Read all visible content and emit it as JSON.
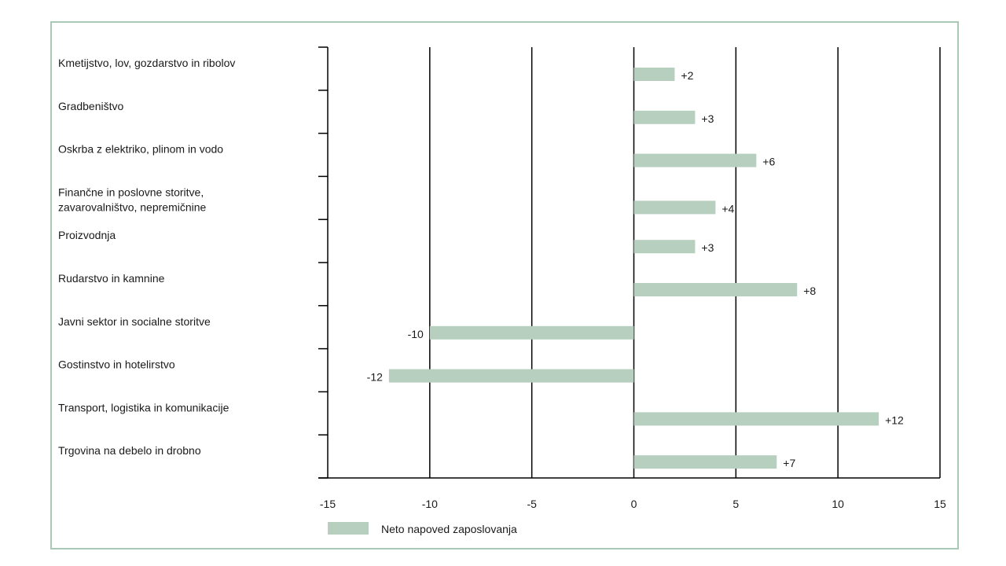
{
  "chart_data": {
    "type": "bar",
    "orientation": "horizontal",
    "categories": [
      [
        "Kmetijstvo, lov, gozdarstvo in ribolov"
      ],
      [
        "Gradbeništvo"
      ],
      [
        "Oskrba z elektriko, plinom in vodo"
      ],
      [
        "Finančne in poslovne storitve,",
        "zavarovalništvo, nepremičnine"
      ],
      [
        "Proizvodnja"
      ],
      [
        "Rudarstvo in kamnine"
      ],
      [
        "Javni sektor in socialne storitve"
      ],
      [
        "Gostinstvo in hotelirstvo"
      ],
      [
        "Transport, logistika in komunikacije"
      ],
      [
        "Trgovina na debelo in drobno"
      ]
    ],
    "series": [
      {
        "name": "Neto napoved zaposlovanja",
        "values": [
          2,
          3,
          6,
          4,
          3,
          8,
          -10,
          -12,
          12,
          7
        ],
        "value_labels": [
          "+2",
          "+3",
          "+6",
          "+4",
          "+3",
          "+8",
          "-10",
          "-12",
          "+12",
          "+7"
        ],
        "color": "#b7cfbf"
      }
    ],
    "xlim": [
      -15,
      15
    ],
    "xticks": [
      -15,
      -10,
      -5,
      0,
      5,
      10,
      15
    ],
    "xtick_labels": [
      "-15",
      "-10",
      "-5",
      "0",
      "5",
      "10",
      "15"
    ],
    "grid": "vertical",
    "legend_position": "bottom-left",
    "frame_color": "#a9c8b6"
  }
}
